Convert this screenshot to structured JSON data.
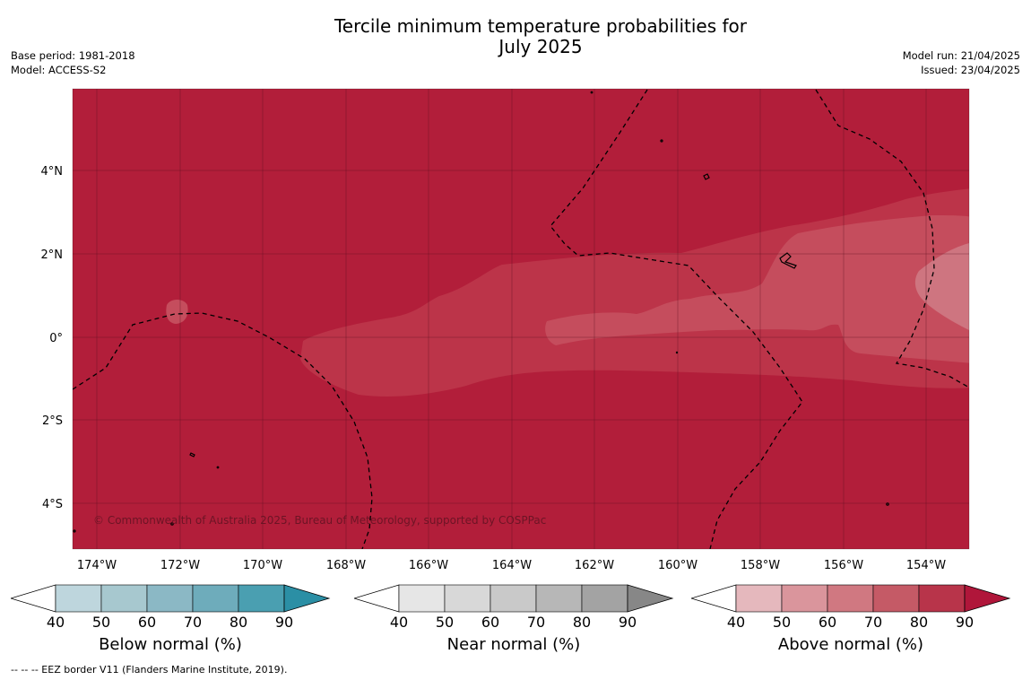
{
  "title": {
    "line1": "Tercile minimum temperature probabilities for",
    "line2": "July 2025"
  },
  "meta_left": {
    "base_period": "Base period: 1981-2018",
    "model": "Model: ACCESS-S2"
  },
  "meta_right": {
    "model_run": "Model run: 21/04/2025",
    "issued": "Issued: 23/04/2025"
  },
  "map": {
    "lat_labels": [
      "4°N",
      "2°N",
      "0°",
      "2°S",
      "4°S"
    ],
    "lon_labels": [
      "174°W",
      "172°W",
      "170°W",
      "168°W",
      "166°W",
      "164°W",
      "162°W",
      "160°W",
      "158°W",
      "156°W",
      "154°W"
    ],
    "copyright": "© Commonwealth of Australia 2025, Bureau of Meteorology, supported by COSPPac",
    "colors": {
      "above_90": "#b21e3a",
      "above_80": "#bc3449",
      "above_70": "#c54d5d",
      "above_60": "#ce7580"
    }
  },
  "colorbars": [
    {
      "label": "Below normal (%)",
      "ticks": [
        "40",
        "50",
        "60",
        "70",
        "80",
        "90"
      ],
      "colors": [
        "#bed6dd",
        "#a7c8cf",
        "#8bb8c5",
        "#6eacbb",
        "#4a9fb1",
        "#2b8fa5"
      ]
    },
    {
      "label": "Near normal (%)",
      "ticks": [
        "40",
        "50",
        "60",
        "70",
        "80",
        "90"
      ],
      "colors": [
        "#e6e6e6",
        "#d8d8d8",
        "#c9c9c9",
        "#b7b7b7",
        "#a3a3a3",
        "#878787"
      ]
    },
    {
      "label": "Above normal (%)",
      "ticks": [
        "40",
        "50",
        "60",
        "70",
        "80",
        "90"
      ],
      "colors": [
        "#e5b8bd",
        "#da959c",
        "#d07881",
        "#c55a66",
        "#b8344a",
        "#b0163a"
      ]
    }
  ],
  "footnote": "--  --  -- EEZ border V11 (Flanders Marine Institute, 2019)."
}
